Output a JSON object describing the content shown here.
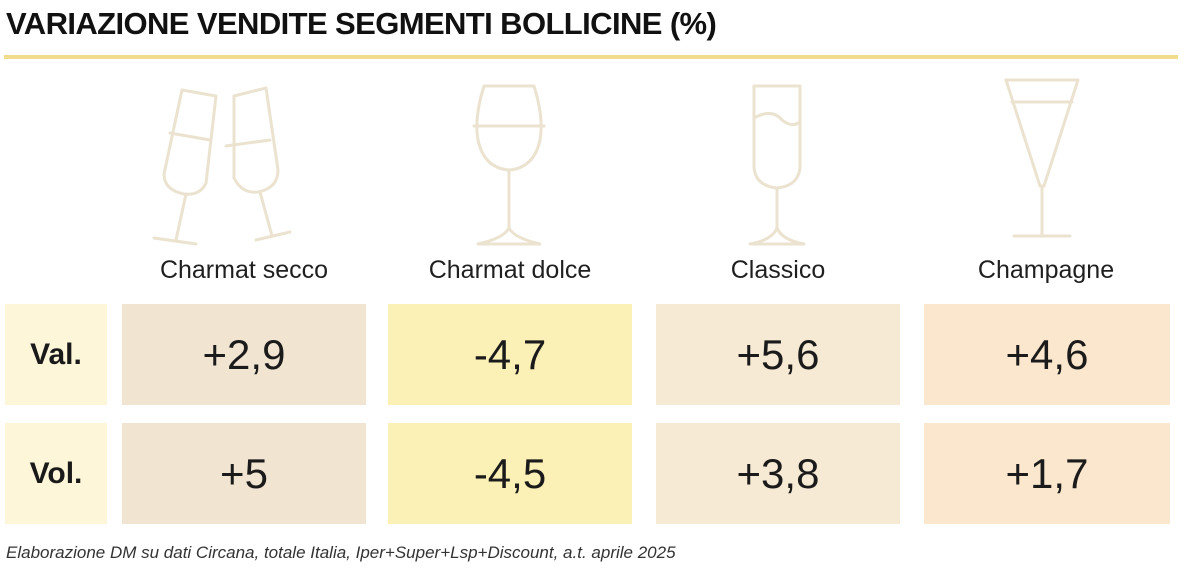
{
  "title": "VARIAZIONE VENDITE SEGMENTI BOLLICINE (%)",
  "source": "Elaborazione DM su dati Circana, totale Italia, Iper+Super+Lsp+Discount, a.t. aprile 2025",
  "colors": {
    "title_rule": "#f0dc8c",
    "row_label_bg": "#fdf6d8",
    "glass_stroke": "#ebe3cf",
    "column_bg": [
      "#f1e5d2",
      "#fbf0b6",
      "#f7ead4",
      "#fae7ce"
    ]
  },
  "chart_data": {
    "type": "table",
    "columns": [
      "Charmat secco",
      "Charmat dolce",
      "Classico",
      "Champagne"
    ],
    "rows": [
      {
        "label": "Val.",
        "values": [
          "+2,9",
          "-4,7",
          "+5,6",
          "+4,6"
        ]
      },
      {
        "label": "Vol.",
        "values": [
          "+5",
          "-4,5",
          "+3,8",
          "+1,7"
        ]
      }
    ],
    "glass_icons": [
      "clinking-flutes-icon",
      "wine-glass-icon",
      "flute-glass-icon",
      "coupe-cone-glass-icon"
    ]
  }
}
